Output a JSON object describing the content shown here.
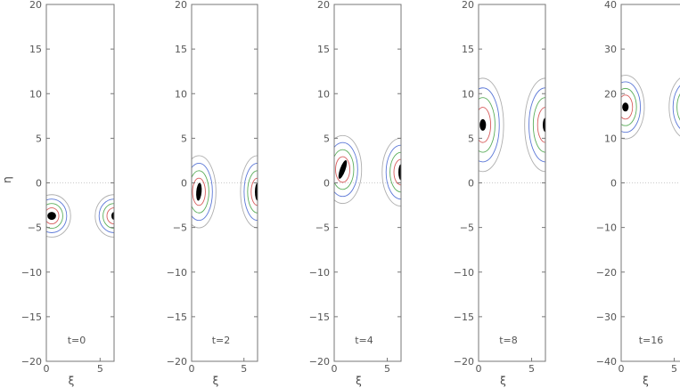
{
  "chart_data": {
    "type": "contour",
    "ylabel": "η",
    "xlabel": "ξ",
    "panels": [
      {
        "label": "t=0",
        "xlim": [
          0,
          6.3
        ],
        "ylim": [
          -20,
          20
        ],
        "xticks": [
          0,
          5
        ],
        "yticks": [
          -20,
          -15,
          -10,
          -5,
          0,
          5,
          10,
          15,
          20
        ],
        "ytick_labels": [
          "−20",
          "−15",
          "−10",
          "−5",
          "0",
          "5",
          "10",
          "15",
          "20"
        ],
        "blobs": [
          {
            "x": 0.5,
            "y": -3.7,
            "w": 0.4,
            "h": 0.5,
            "core_angle": 0,
            "contour_h": 1.0,
            "contour_w": 1.0
          },
          {
            "x": 6.3,
            "y": -3.7,
            "w": 0.15,
            "h": 0.5,
            "core_angle": 0,
            "contour_h": 1.0,
            "contour_w": 1.0,
            "partial": true
          }
        ]
      },
      {
        "label": "t=2",
        "xlim": [
          0,
          6.3
        ],
        "ylim": [
          -20,
          20
        ],
        "xticks": [
          0,
          5
        ],
        "yticks": [
          -20,
          -15,
          -10,
          -5,
          0,
          5,
          10,
          15,
          20
        ],
        "ytick_labels": [
          "−20",
          "−15",
          "−10",
          "−5",
          "0",
          "5",
          "10",
          "15",
          "20"
        ],
        "blobs": [
          {
            "x": 0.7,
            "y": -1.0,
            "w": 0.25,
            "h": 1.6,
            "core_angle": 5,
            "contour_h": 1.7,
            "contour_w": 0.9
          },
          {
            "x": 6.3,
            "y": -1.0,
            "w": 0.15,
            "h": 1.6,
            "core_angle": 0,
            "contour_h": 1.7,
            "contour_w": 0.9,
            "partial": true
          }
        ]
      },
      {
        "label": "t=4",
        "xlim": [
          0,
          6.3
        ],
        "ylim": [
          -20,
          20
        ],
        "xticks": [
          0,
          5
        ],
        "yticks": [
          -20,
          -15,
          -10,
          -5,
          0,
          5,
          10,
          15,
          20
        ],
        "ytick_labels": [
          "−20",
          "−15",
          "−10",
          "−5",
          "0",
          "5",
          "10",
          "15",
          "20"
        ],
        "blobs": [
          {
            "x": 0.8,
            "y": 1.5,
            "w": 0.25,
            "h": 1.8,
            "core_angle": 20,
            "contour_h": 1.6,
            "contour_w": 1.0
          },
          {
            "x": 6.3,
            "y": 1.2,
            "w": 0.15,
            "h": 1.4,
            "core_angle": 0,
            "contour_h": 1.6,
            "contour_w": 1.0,
            "partial": true
          }
        ]
      },
      {
        "label": "t=8",
        "xlim": [
          0,
          6.3
        ],
        "ylim": [
          -20,
          20
        ],
        "xticks": [
          0,
          5
        ],
        "yticks": [
          -20,
          -15,
          -10,
          -5,
          0,
          5,
          10,
          15,
          20
        ],
        "ytick_labels": [
          "−20",
          "−15",
          "−10",
          "−5",
          "0",
          "5",
          "10",
          "15",
          "20"
        ],
        "blobs": [
          {
            "x": 0.4,
            "y": 6.5,
            "w": 0.3,
            "h": 0.9,
            "core_angle": 0,
            "contour_h": 2.2,
            "contour_w": 1.1
          },
          {
            "x": 6.3,
            "y": 6.5,
            "w": 0.15,
            "h": 1.2,
            "core_angle": 0,
            "contour_h": 2.2,
            "contour_w": 1.1,
            "partial": true
          }
        ]
      },
      {
        "label": "t=16",
        "xlim": [
          0,
          6.3
        ],
        "ylim": [
          -40,
          40
        ],
        "xticks": [
          0,
          5
        ],
        "yticks": [
          -40,
          -30,
          -20,
          -10,
          0,
          10,
          20,
          30,
          40
        ],
        "ytick_labels": [
          "−40",
          "−30",
          "−20",
          "−10",
          "0",
          "10",
          "20",
          "30",
          "40"
        ],
        "blobs": [
          {
            "x": 0.4,
            "y": 17,
            "w": 0.3,
            "h": 1.2,
            "core_angle": 0,
            "contour_h": 1.5,
            "contour_w": 1.0
          },
          {
            "x": 6.3,
            "y": 17,
            "w": 0.15,
            "h": 1.0,
            "core_angle": 0,
            "contour_h": 1.5,
            "contour_w": 1.0,
            "partial": true
          }
        ]
      }
    ],
    "contour_colors": [
      "#d04040",
      "#40a040",
      "#4060d0",
      "#a0a0a0"
    ],
    "zero_line": true,
    "grid": false
  }
}
